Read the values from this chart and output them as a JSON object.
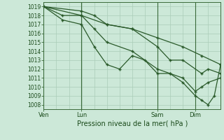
{
  "background_color": "#cce8d8",
  "grid_color": "#aaccb8",
  "line_color": "#2a5a2a",
  "marker_color": "#2a5a2a",
  "title": "Pression niveau de la mer( hPa )",
  "ylabel_ticks": [
    1008,
    1009,
    1010,
    1011,
    1012,
    1013,
    1014,
    1015,
    1016,
    1017,
    1018,
    1019
  ],
  "ylim": [
    1007.5,
    1019.5
  ],
  "xtick_labels": [
    "Ven",
    "Lun",
    "Sam",
    "Dim"
  ],
  "xtick_positions": [
    0.0,
    0.214,
    0.643,
    0.857
  ],
  "xlim": [
    0.0,
    1.0
  ],
  "day_lines": [
    0.0,
    0.214,
    0.643,
    0.857
  ],
  "series": [
    [
      [
        0.0,
        1019.0
      ],
      [
        0.214,
        1018.0
      ],
      [
        0.357,
        1017.0
      ],
      [
        0.5,
        1016.5
      ],
      [
        0.643,
        1015.5
      ],
      [
        0.786,
        1014.5
      ],
      [
        0.893,
        1013.5
      ],
      [
        1.0,
        1012.5
      ]
    ],
    [
      [
        0.0,
        1019.0
      ],
      [
        0.214,
        1018.5
      ],
      [
        0.286,
        1018.0
      ],
      [
        0.357,
        1017.0
      ],
      [
        0.5,
        1016.5
      ],
      [
        0.643,
        1014.5
      ],
      [
        0.714,
        1013.0
      ],
      [
        0.786,
        1013.0
      ],
      [
        0.893,
        1011.5
      ],
      [
        0.929,
        1012.0
      ],
      [
        1.0,
        1011.5
      ]
    ],
    [
      [
        0.0,
        1019.0
      ],
      [
        0.107,
        1017.5
      ],
      [
        0.214,
        1017.0
      ],
      [
        0.286,
        1014.5
      ],
      [
        0.357,
        1012.5
      ],
      [
        0.429,
        1012.0
      ],
      [
        0.5,
        1013.5
      ],
      [
        0.571,
        1013.0
      ],
      [
        0.643,
        1011.5
      ],
      [
        0.714,
        1011.5
      ],
      [
        0.786,
        1010.5
      ],
      [
        0.857,
        1009.0
      ],
      [
        0.893,
        1008.5
      ],
      [
        0.929,
        1008.0
      ],
      [
        0.964,
        1009.0
      ],
      [
        1.0,
        1012.5
      ]
    ],
    [
      [
        0.0,
        1019.0
      ],
      [
        0.107,
        1018.0
      ],
      [
        0.214,
        1018.0
      ],
      [
        0.286,
        1016.5
      ],
      [
        0.357,
        1015.0
      ],
      [
        0.5,
        1014.0
      ],
      [
        0.643,
        1012.0
      ],
      [
        0.714,
        1011.5
      ],
      [
        0.786,
        1011.0
      ],
      [
        0.857,
        1009.5
      ],
      [
        0.893,
        1010.0
      ],
      [
        0.929,
        1010.5
      ],
      [
        1.0,
        1011.0
      ]
    ]
  ]
}
